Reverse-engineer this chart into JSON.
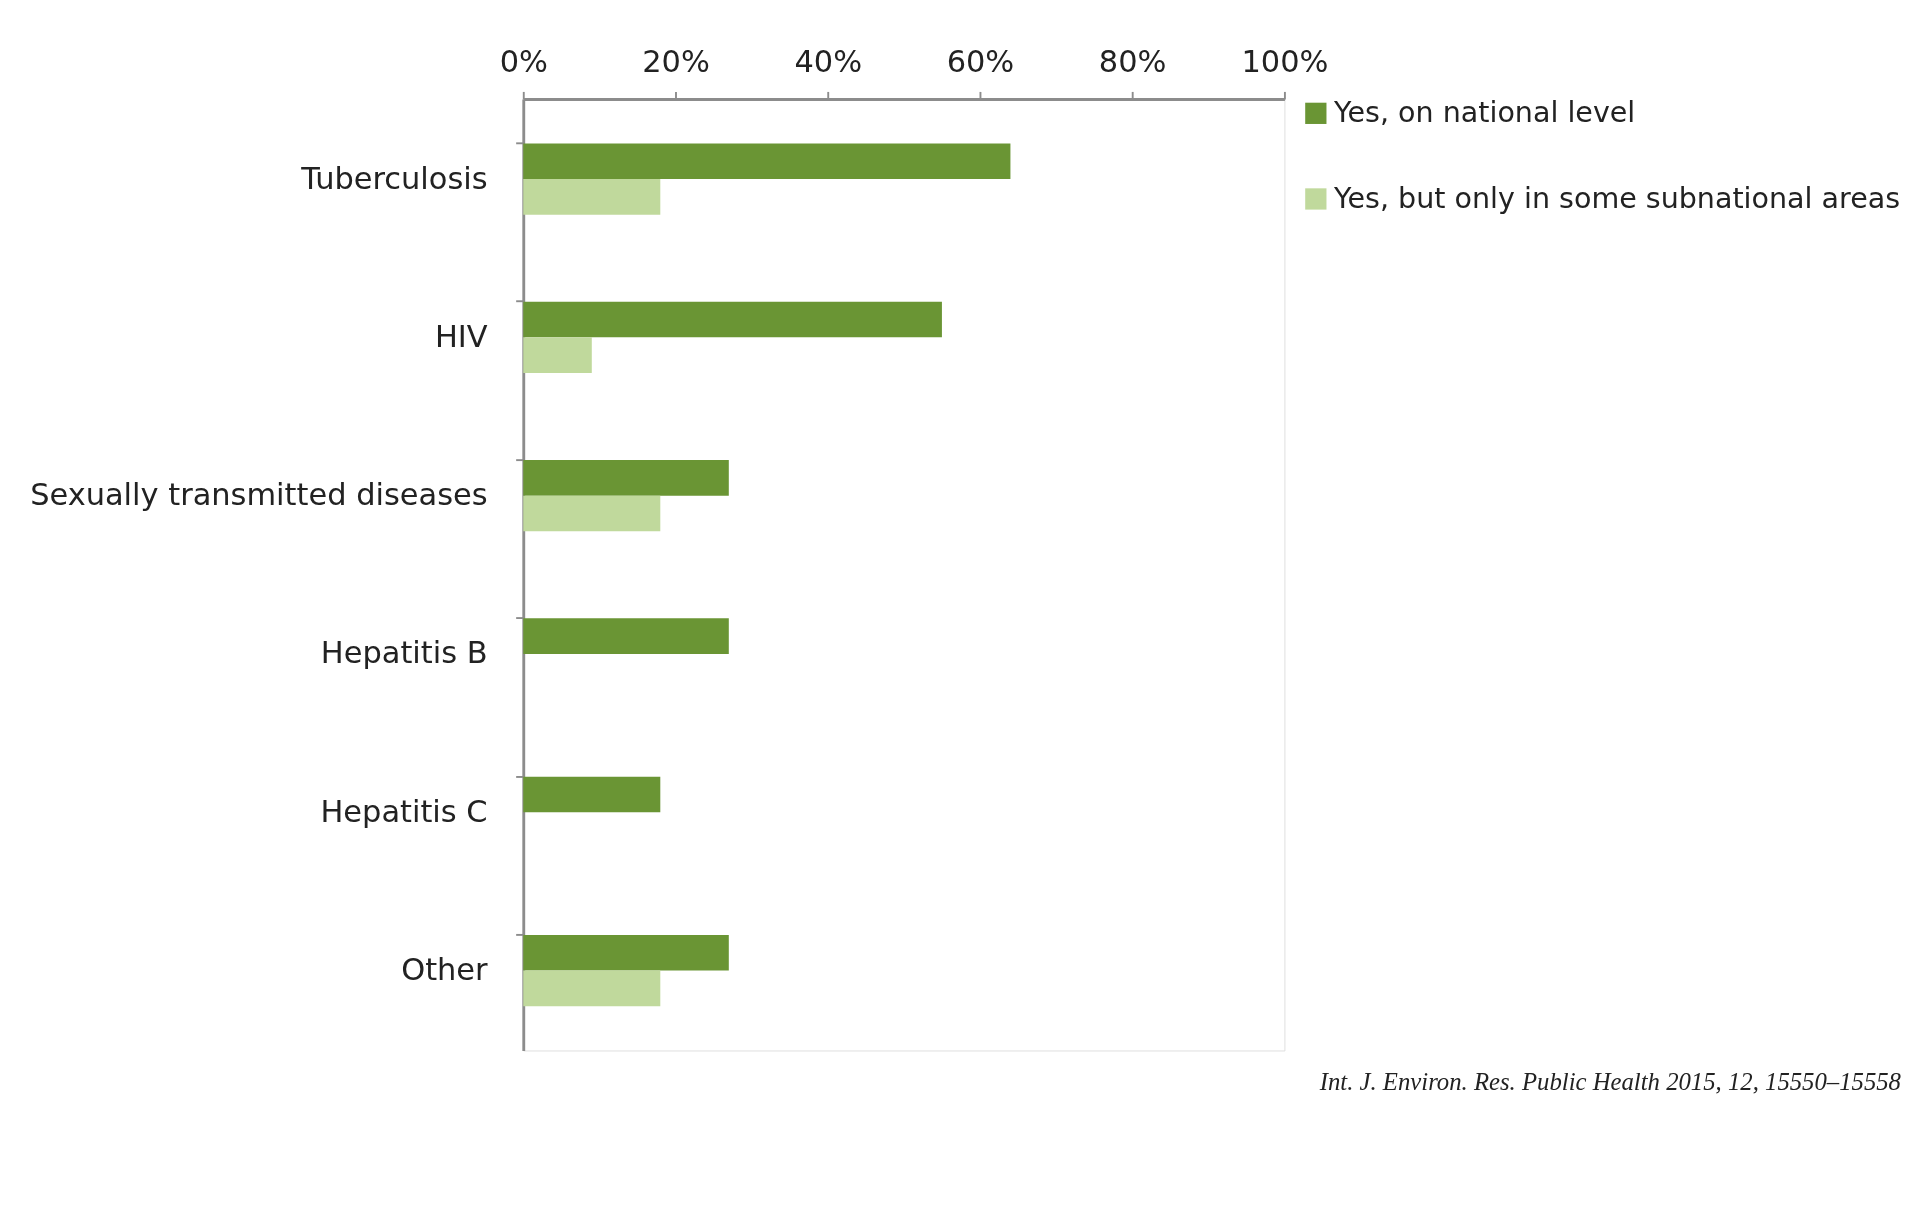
{
  "chart_data": {
    "type": "bar",
    "orientation": "horizontal",
    "categories": [
      "Tuberculosis",
      "HIV",
      "Sexually transmitted  diseases",
      "Hepatitis B",
      "Hepatitis C",
      "Other"
    ],
    "series": [
      {
        "name": "Yes, on national level",
        "color": "#6a9534",
        "values": [
          64,
          55,
          27,
          27,
          18,
          27
        ]
      },
      {
        "name": "Yes, but only in some subnational areas",
        "color": "#c0d99c",
        "values": [
          18,
          9,
          18,
          null,
          null,
          18
        ]
      }
    ],
    "xlim": [
      0,
      100
    ],
    "xticks": [
      {
        "value": 0,
        "label": "0%"
      },
      {
        "value": 20,
        "label": "20%"
      },
      {
        "value": 40,
        "label": "40%"
      },
      {
        "value": 60,
        "label": "60%"
      },
      {
        "value": 80,
        "label": "80%"
      },
      {
        "value": 100,
        "label": "100%"
      }
    ],
    "grid": false,
    "legend": "right",
    "annotations": [
      "Int. J. Environ. Res. Public Health 2015, 12, 15550–15558"
    ]
  }
}
